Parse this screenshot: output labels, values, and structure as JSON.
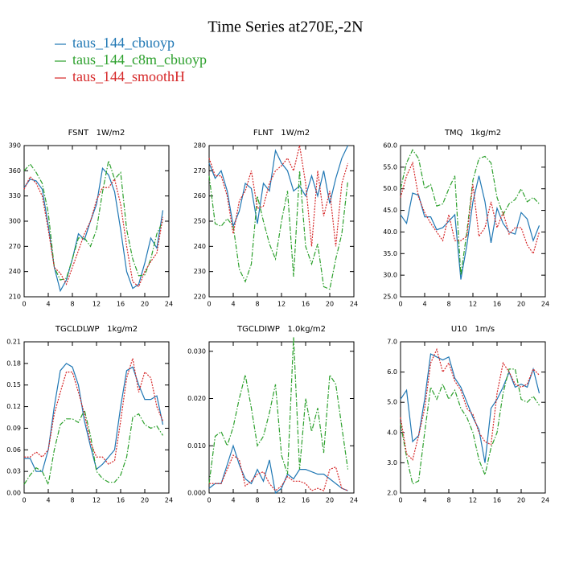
{
  "title": "Time Series at270E,-2N",
  "legend": [
    {
      "name": "taus_144_cbuoyp",
      "color": "#1f77b4",
      "style": "solid"
    },
    {
      "name": "taus_144_c8m_cbuoyp",
      "color": "#2ca02c",
      "style": "dashdot"
    },
    {
      "name": "taus_144_smoothH",
      "color": "#d62728",
      "style": "dotted"
    }
  ],
  "chart_data": [
    {
      "type": "line",
      "title": "FSNT   1W/m2",
      "x": [
        0,
        1,
        2,
        3,
        4,
        5,
        6,
        7,
        8,
        9,
        10,
        11,
        12,
        13,
        14,
        15,
        16,
        17,
        18,
        19,
        20,
        21,
        22,
        23
      ],
      "xlim": [
        0,
        24
      ],
      "xticks": [
        0,
        4,
        8,
        12,
        16,
        20,
        24
      ],
      "ylim": [
        210,
        390
      ],
      "yticks": [
        210,
        240,
        270,
        300,
        330,
        360,
        390
      ],
      "series": [
        {
          "values": [
            340,
            350,
            348,
            338,
            295,
            245,
            217,
            230,
            255,
            285,
            278,
            300,
            320,
            363,
            355,
            335,
            290,
            240,
            220,
            225,
            250,
            280,
            268,
            313
          ]
        },
        {
          "values": [
            360,
            368,
            358,
            345,
            310,
            245,
            230,
            232,
            255,
            280,
            280,
            270,
            290,
            335,
            372,
            350,
            358,
            290,
            255,
            235,
            236,
            255,
            285,
            300
          ]
        },
        {
          "values": [
            338,
            353,
            345,
            330,
            290,
            245,
            238,
            225,
            245,
            265,
            285,
            300,
            325,
            340,
            340,
            350,
            320,
            270,
            228,
            222,
            240,
            252,
            262,
            305
          ]
        }
      ]
    },
    {
      "type": "line",
      "title": "FLNT   1W/m2",
      "x": [
        0,
        1,
        2,
        3,
        4,
        5,
        6,
        7,
        8,
        9,
        10,
        11,
        12,
        13,
        14,
        15,
        16,
        17,
        18,
        19,
        20,
        21,
        22,
        23
      ],
      "xlim": [
        0,
        24
      ],
      "xticks": [
        0,
        4,
        8,
        12,
        16,
        20,
        24
      ],
      "ylim": [
        220,
        280
      ],
      "yticks": [
        220,
        230,
        240,
        250,
        260,
        270,
        280
      ],
      "series": [
        {
          "values": [
            273,
            267,
            270,
            262,
            248,
            254,
            265,
            263,
            249,
            265,
            262,
            278,
            273,
            270,
            262,
            264,
            260,
            268,
            260,
            270,
            257,
            267,
            275,
            280
          ]
        },
        {
          "values": [
            268,
            249,
            248,
            251,
            248,
            231,
            226,
            233,
            260,
            250,
            241,
            235,
            250,
            262,
            228,
            270,
            240,
            233,
            241,
            224,
            223,
            235,
            245,
            266
          ]
        },
        {
          "values": [
            275,
            268,
            268,
            260,
            245,
            258,
            262,
            270,
            255,
            256,
            265,
            270,
            272,
            275,
            270,
            280,
            265,
            240,
            270,
            252,
            262,
            240,
            265,
            273
          ]
        }
      ]
    },
    {
      "type": "line",
      "title": "TMQ   1kg/m2",
      "x": [
        0,
        1,
        2,
        3,
        4,
        5,
        6,
        7,
        8,
        9,
        10,
        11,
        12,
        13,
        14,
        15,
        16,
        17,
        18,
        19,
        20,
        21,
        22,
        23
      ],
      "xlim": [
        0,
        24
      ],
      "xticks": [
        0,
        4,
        8,
        12,
        16,
        20,
        24
      ],
      "ylim": [
        25,
        60
      ],
      "yticks": [
        {
          "value": 25,
          "label": "25.0"
        },
        {
          "value": 30,
          "label": "30.0"
        },
        {
          "value": 35,
          "label": "35.0"
        },
        {
          "value": 40,
          "label": "40.0"
        },
        {
          "value": 45,
          "label": "45.0"
        },
        {
          "value": 50,
          "label": "50.0"
        },
        {
          "value": 55,
          "label": "55.0"
        },
        {
          "value": 60,
          "label": "60.0"
        }
      ],
      "series": [
        {
          "values": [
            44,
            42,
            49,
            48.5,
            43.5,
            43.5,
            40.5,
            41,
            42.5,
            44,
            29,
            37,
            47,
            53,
            47,
            37.5,
            45.5,
            42,
            40,
            39.5,
            44.5,
            43,
            38,
            41.5
          ]
        },
        {
          "values": [
            50,
            56,
            59,
            57,
            50,
            51,
            46,
            46.5,
            50,
            53,
            30,
            40,
            52,
            57,
            57.5,
            56,
            48,
            44,
            46.5,
            47.5,
            50,
            47,
            48,
            46.5
          ]
        },
        {
          "values": [
            48,
            53,
            56,
            48,
            44.5,
            42,
            40,
            38,
            44,
            38,
            38,
            39,
            51,
            39,
            41,
            47,
            41,
            44.5,
            39.5,
            41,
            41,
            37,
            35,
            40
          ]
        }
      ]
    },
    {
      "type": "line",
      "title": "TGCLDLWP   1kg/m2",
      "x": [
        0,
        1,
        2,
        3,
        4,
        5,
        6,
        7,
        8,
        9,
        10,
        11,
        12,
        13,
        14,
        15,
        16,
        17,
        18,
        19,
        20,
        21,
        22,
        23
      ],
      "xlim": [
        0,
        24
      ],
      "xticks": [
        0,
        4,
        8,
        12,
        16,
        20,
        24
      ],
      "ylim": [
        0,
        0.21
      ],
      "yticks": [
        {
          "value": 0,
          "label": "0.00"
        },
        {
          "value": 0.03,
          "label": "0.03"
        },
        {
          "value": 0.06,
          "label": "0.06"
        },
        {
          "value": 0.09,
          "label": "0.09"
        },
        {
          "value": 0.12,
          "label": "0.12"
        },
        {
          "value": 0.15,
          "label": "0.15"
        },
        {
          "value": 0.18,
          "label": "0.18"
        },
        {
          "value": 0.21,
          "label": "0.21"
        }
      ],
      "series": [
        {
          "values": [
            0.048,
            0.048,
            0.03,
            0.03,
            0.06,
            0.12,
            0.17,
            0.18,
            0.175,
            0.15,
            0.1,
            0.065,
            0.033,
            0.04,
            0.05,
            0.06,
            0.12,
            0.17,
            0.175,
            0.15,
            0.13,
            0.13,
            0.135,
            0.095
          ]
        },
        {
          "values": [
            0.012,
            0.025,
            0.035,
            0.03,
            0.012,
            0.06,
            0.095,
            0.103,
            0.103,
            0.098,
            0.115,
            0.08,
            0.03,
            0.02,
            0.015,
            0.015,
            0.025,
            0.05,
            0.105,
            0.11,
            0.095,
            0.09,
            0.093,
            0.08
          ]
        },
        {
          "values": [
            0.05,
            0.05,
            0.057,
            0.05,
            0.06,
            0.11,
            0.14,
            0.168,
            0.168,
            0.14,
            0.11,
            0.07,
            0.05,
            0.05,
            0.04,
            0.045,
            0.1,
            0.16,
            0.187,
            0.14,
            0.168,
            0.16,
            0.12,
            0.1
          ]
        }
      ]
    },
    {
      "type": "line",
      "title": "TGCLDIWP   1.0kg/m2",
      "x": [
        0,
        1,
        2,
        3,
        4,
        5,
        6,
        7,
        8,
        9,
        10,
        11,
        12,
        13,
        14,
        15,
        16,
        17,
        18,
        19,
        20,
        21,
        22,
        23
      ],
      "xlim": [
        0,
        24
      ],
      "xticks": [
        0,
        4,
        8,
        12,
        16,
        20,
        24
      ],
      "ylim": [
        0,
        0.032
      ],
      "yticks": [
        {
          "value": 0,
          "label": "0.000"
        },
        {
          "value": 0.01,
          "label": "0.010"
        },
        {
          "value": 0.02,
          "label": "0.020"
        },
        {
          "value": 0.03,
          "label": "0.030"
        }
      ],
      "series": [
        {
          "values": [
            0.001,
            0.002,
            0.002,
            0.006,
            0.01,
            0.006,
            0.003,
            0.002,
            0.005,
            0.0025,
            0.007,
            0,
            0.001,
            0.004,
            0.003,
            0.005,
            0.005,
            0.0045,
            0.004,
            0.004,
            0.003,
            0.002,
            0.001,
            0.0005
          ]
        },
        {
          "values": [
            0.002,
            0.012,
            0.013,
            0.01,
            0.014,
            0.02,
            0.025,
            0.018,
            0.01,
            0.012,
            0.017,
            0.023,
            0.008,
            0.004,
            0.033,
            0.005,
            0.02,
            0.013,
            0.018,
            0.0085,
            0.025,
            0.023,
            0.014,
            0.005
          ]
        },
        {
          "values": [
            0.002,
            0.002,
            0.002,
            0.005,
            0.008,
            0.007,
            0.0015,
            0.0025,
            0.004,
            0.0045,
            0.002,
            0.0005,
            0.0015,
            0.0035,
            0.0025,
            0.0025,
            0.002,
            0.0005,
            0.001,
            0.0005,
            0.005,
            0.0055,
            0.001,
            0.0005
          ]
        }
      ]
    },
    {
      "type": "line",
      "title": "U10   1m/s",
      "x": [
        0,
        1,
        2,
        3,
        4,
        5,
        6,
        7,
        8,
        9,
        10,
        11,
        12,
        13,
        14,
        15,
        16,
        17,
        18,
        19,
        20,
        21,
        22,
        23
      ],
      "xlim": [
        0,
        24
      ],
      "xticks": [
        0,
        4,
        8,
        12,
        16,
        20,
        24
      ],
      "ylim": [
        2,
        7
      ],
      "yticks": [
        {
          "value": 2,
          "label": "2.0"
        },
        {
          "value": 3,
          "label": "3.0"
        },
        {
          "value": 4,
          "label": "4.0"
        },
        {
          "value": 5,
          "label": "5.0"
        },
        {
          "value": 6,
          "label": "6.0"
        },
        {
          "value": 7,
          "label": "7.0"
        }
      ],
      "series": [
        {
          "values": [
            5.1,
            5.4,
            3.7,
            3.9,
            5.1,
            6.6,
            6.5,
            6.4,
            6.5,
            5.8,
            5.5,
            5.0,
            4.5,
            4.1,
            3.0,
            4.8,
            5.1,
            5.5,
            6.0,
            5.5,
            5.6,
            5.5,
            6.1,
            5.3
          ]
        },
        {
          "values": [
            4.3,
            3.2,
            2.3,
            2.4,
            4.0,
            5.5,
            5.1,
            5.6,
            5.1,
            5.4,
            4.8,
            4.5,
            4.0,
            3.1,
            2.6,
            3.5,
            4.0,
            5.3,
            6.1,
            6.1,
            5.1,
            5.0,
            5.2,
            4.9
          ]
        },
        {
          "values": [
            4.5,
            3.3,
            3.1,
            3.9,
            4.8,
            6.3,
            6.75,
            6.0,
            6.3,
            5.7,
            5.4,
            4.8,
            4.6,
            4.0,
            3.7,
            3.6,
            5.3,
            6.3,
            6.0,
            5.6,
            5.5,
            5.6,
            6.1,
            5.9
          ]
        }
      ]
    }
  ]
}
